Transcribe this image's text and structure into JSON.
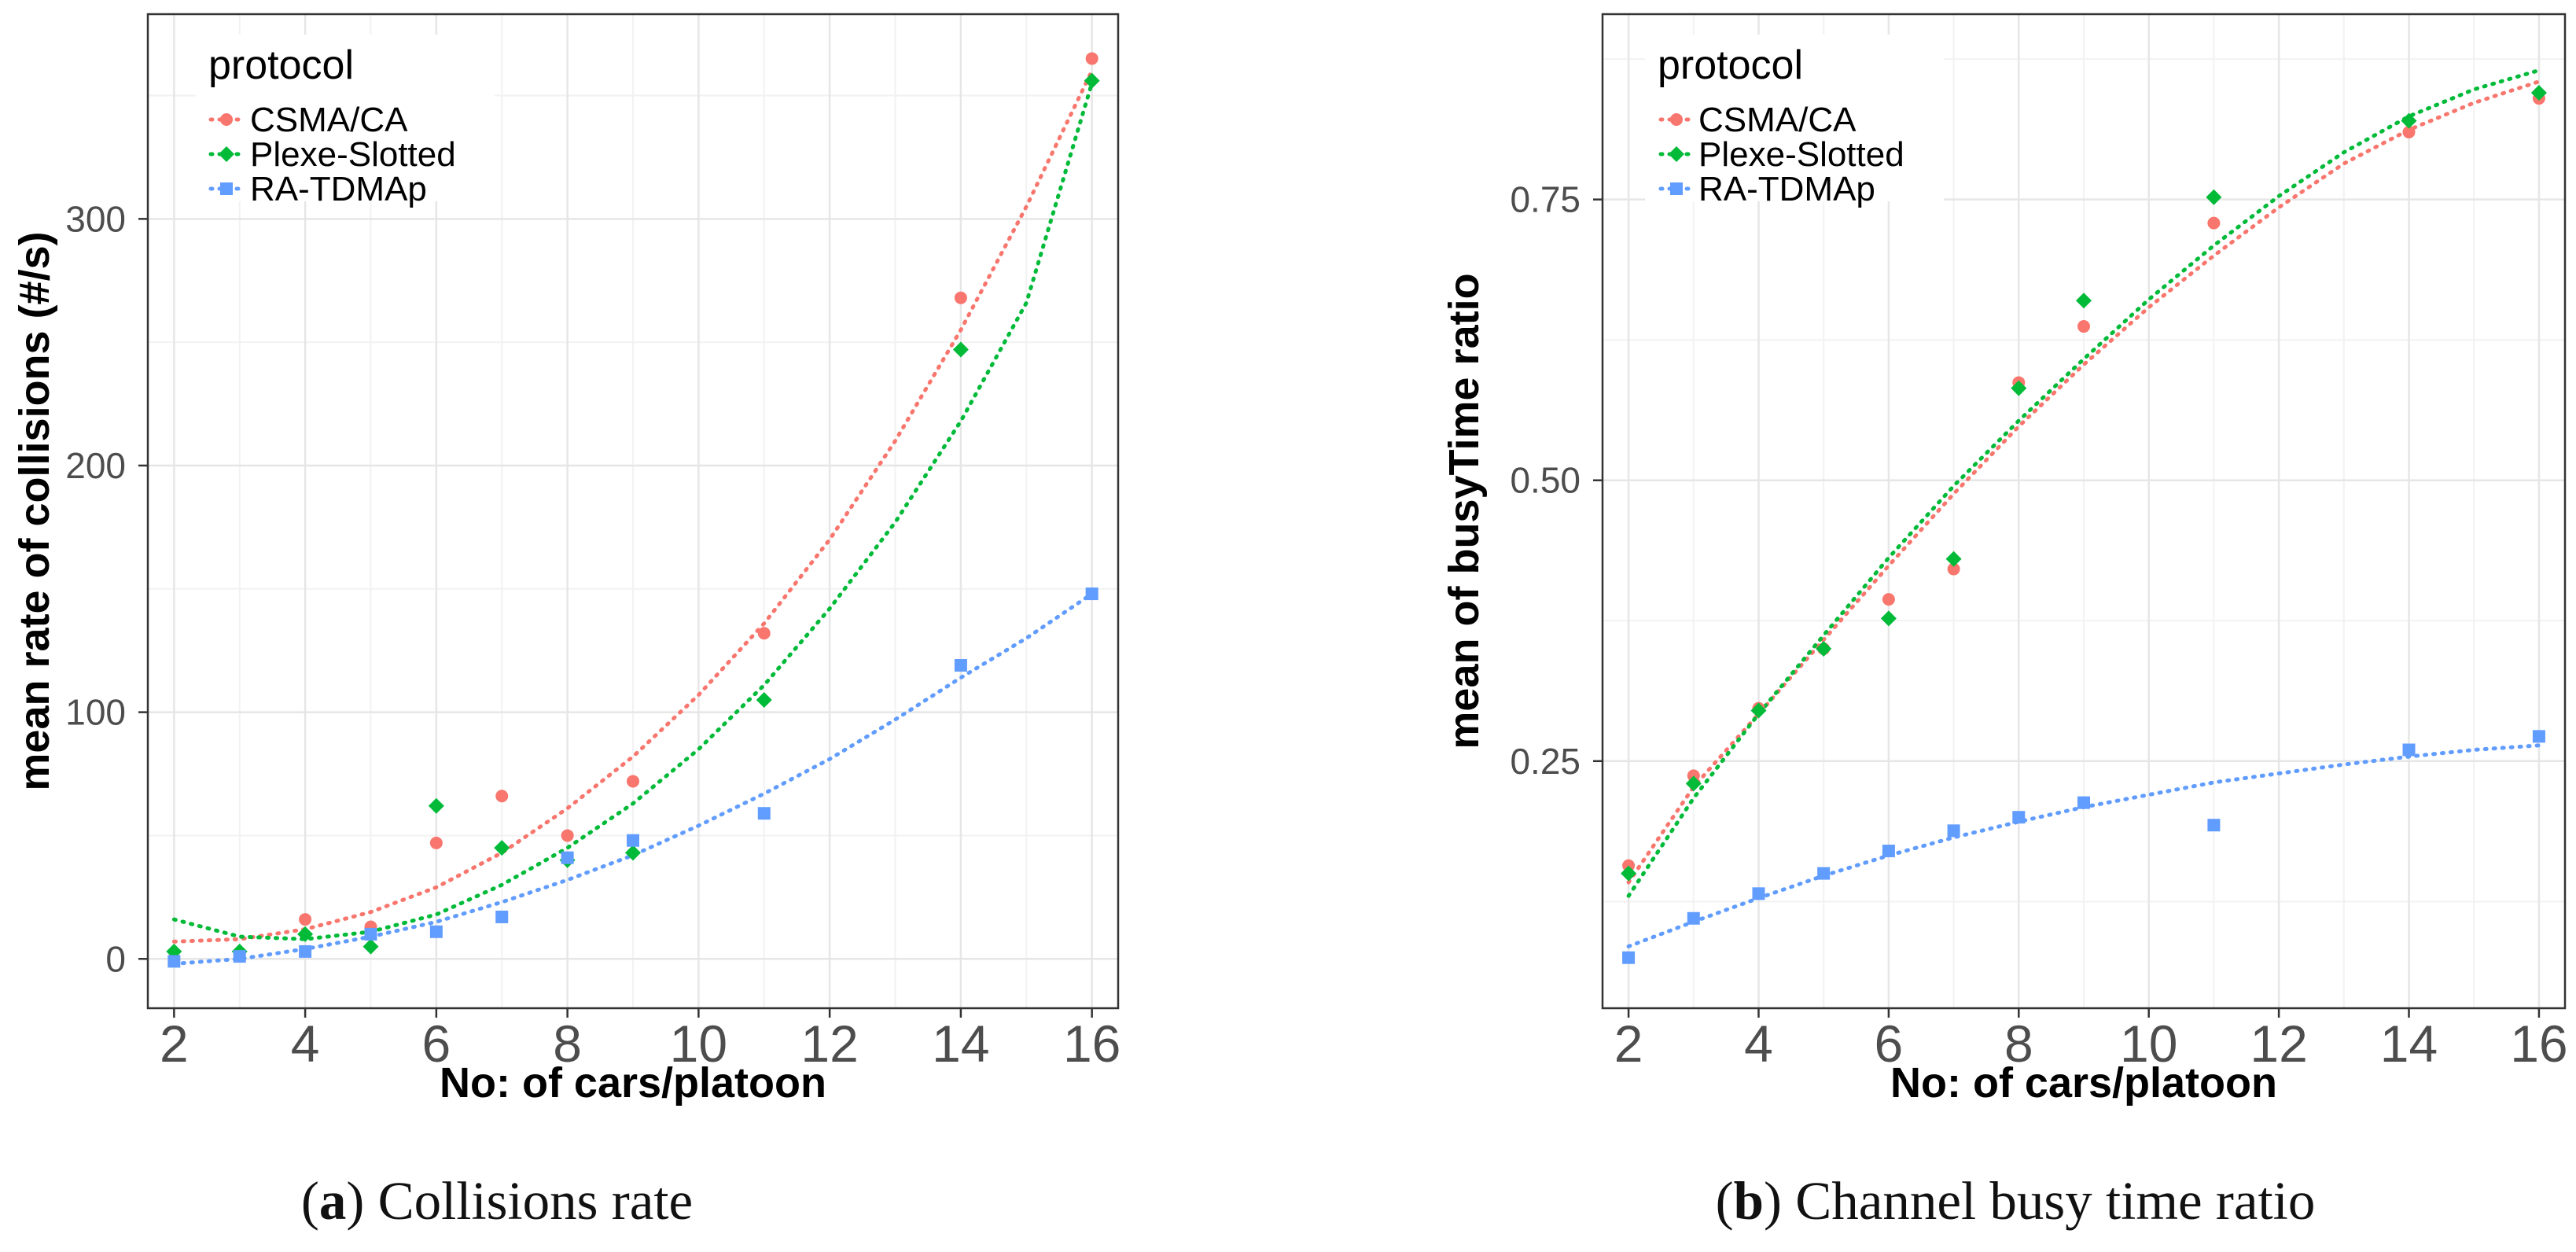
{
  "chart_data": [
    {
      "type": "scatter",
      "panel_label": "a",
      "caption": "Collisions rate",
      "xlabel": "No: of cars/platoon",
      "ylabel": "mean rate of collisions (#/s)",
      "xlim": [
        1.6,
        16.4
      ],
      "ylim": [
        -20,
        383
      ],
      "xticks": [
        2,
        4,
        6,
        8,
        10,
        12,
        14,
        16
      ],
      "yticks": [
        0,
        100,
        200,
        300
      ],
      "grid": true,
      "legend": {
        "title": "protocol",
        "position": "top-left"
      },
      "series": [
        {
          "name": "CSMA/CA",
          "color": "#f8766d",
          "marker": "circle",
          "x": [
            2,
            3,
            4,
            5,
            6,
            7,
            8,
            9,
            11,
            14,
            16
          ],
          "y": [
            0,
            2,
            16,
            13,
            47,
            66,
            50,
            72,
            132,
            268,
            365
          ],
          "trend_x": [
            2,
            3,
            4,
            5,
            6,
            7,
            8,
            9,
            10,
            11,
            12,
            13,
            14,
            15,
            16
          ],
          "trend_y": [
            7,
            8,
            12,
            19,
            29,
            43,
            61,
            82,
            107,
            136,
            170,
            210,
            255,
            305,
            360
          ]
        },
        {
          "name": "Plexe-Slotted",
          "color": "#00ba38",
          "marker": "diamond",
          "x": [
            2,
            3,
            4,
            5,
            6,
            7,
            8,
            9,
            11,
            14,
            16
          ],
          "y": [
            3,
            3,
            10,
            5,
            62,
            45,
            40,
            43,
            105,
            247,
            356
          ],
          "trend_x": [
            2,
            3,
            4,
            5,
            6,
            7,
            8,
            9,
            10,
            11,
            12,
            13,
            14,
            15,
            16
          ],
          "trend_y": [
            16,
            9,
            8,
            11,
            18,
            30,
            45,
            63,
            85,
            111,
            142,
            177,
            218,
            266,
            355
          ]
        },
        {
          "name": "RA-TDMAp",
          "color": "#619cff",
          "marker": "square",
          "x": [
            2,
            3,
            4,
            5,
            6,
            7,
            8,
            9,
            11,
            14,
            16
          ],
          "y": [
            -1,
            1,
            3,
            10,
            11,
            17,
            41,
            48,
            59,
            119,
            148
          ],
          "trend_x": [
            2,
            3,
            4,
            5,
            6,
            7,
            8,
            9,
            10,
            11,
            12,
            13,
            14,
            15,
            16
          ],
          "trend_y": [
            -2,
            0,
            4,
            9,
            15,
            23,
            32,
            42,
            54,
            67,
            81,
            97,
            114,
            130,
            148
          ]
        }
      ]
    },
    {
      "type": "scatter",
      "panel_label": "b",
      "caption": "Channel busy time ratio",
      "xlabel": "No: of cars/platoon",
      "ylabel": "mean of busyTime ratio",
      "xlim": [
        1.6,
        16.4
      ],
      "ylim": [
        0.03,
        0.915
      ],
      "xticks": [
        2,
        4,
        6,
        8,
        10,
        12,
        14,
        16
      ],
      "yticks": [
        0.25,
        0.5,
        0.75
      ],
      "ytick_labels": [
        "0.25",
        "0.50",
        "0.75"
      ],
      "grid": true,
      "legend": {
        "title": "protocol",
        "position": "top-left"
      },
      "series": [
        {
          "name": "CSMA/CA",
          "color": "#f8766d",
          "marker": "circle",
          "x": [
            2,
            3,
            4,
            5,
            6,
            7,
            8,
            9,
            11,
            14,
            16
          ],
          "y": [
            0.157,
            0.237,
            0.297,
            0.35,
            0.394,
            0.421,
            0.587,
            0.637,
            0.729,
            0.81,
            0.84
          ],
          "trend_x": [
            2,
            3,
            4,
            5,
            6,
            7,
            8,
            9,
            10,
            11,
            12,
            13,
            14,
            15,
            16
          ],
          "trend_y": [
            0.142,
            0.227,
            0.292,
            0.358,
            0.424,
            0.488,
            0.548,
            0.603,
            0.654,
            0.7,
            0.743,
            0.782,
            0.812,
            0.836,
            0.855
          ]
        },
        {
          "name": "Plexe-Slotted",
          "color": "#00ba38",
          "marker": "diamond",
          "x": [
            2,
            3,
            4,
            5,
            6,
            7,
            8,
            9,
            11,
            14,
            16
          ],
          "y": [
            0.15,
            0.23,
            0.295,
            0.35,
            0.377,
            0.43,
            0.582,
            0.66,
            0.752,
            0.82,
            0.845
          ],
          "trend_x": [
            2,
            3,
            4,
            5,
            6,
            7,
            8,
            9,
            10,
            11,
            12,
            13,
            14,
            15,
            16
          ],
          "trend_y": [
            0.13,
            0.217,
            0.292,
            0.362,
            0.431,
            0.495,
            0.553,
            0.608,
            0.661,
            0.709,
            0.753,
            0.792,
            0.824,
            0.848,
            0.865
          ]
        },
        {
          "name": "RA-TDMAp",
          "color": "#619cff",
          "marker": "square",
          "x": [
            2,
            3,
            4,
            5,
            6,
            7,
            8,
            9,
            11,
            14,
            16
          ],
          "y": [
            0.075,
            0.11,
            0.132,
            0.15,
            0.17,
            0.188,
            0.2,
            0.213,
            0.193,
            0.26,
            0.272
          ],
          "trend_x": [
            2,
            3,
            4,
            5,
            6,
            7,
            8,
            9,
            10,
            11,
            12,
            13,
            14,
            15,
            16
          ],
          "trend_y": [
            0.085,
            0.107,
            0.128,
            0.148,
            0.166,
            0.182,
            0.196,
            0.209,
            0.22,
            0.231,
            0.239,
            0.247,
            0.254,
            0.26,
            0.264
          ]
        }
      ]
    }
  ]
}
